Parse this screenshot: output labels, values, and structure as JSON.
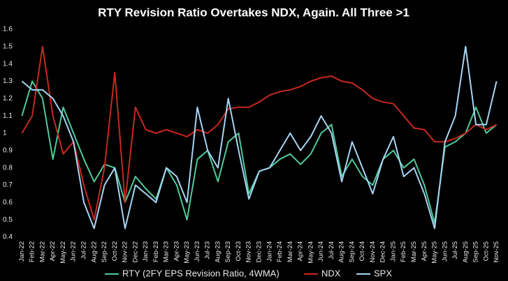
{
  "chart_data": {
    "type": "line",
    "title": "RTY Revision Ratio Overtakes NDX, Again. All Three >1",
    "categories": [
      "Jan-22",
      "Feb-22",
      "Mar-22",
      "Apr-22",
      "May-22",
      "Jun-22",
      "Jul-22",
      "Aug-22",
      "Sep-22",
      "Oct-22",
      "Nov-22",
      "Dec-22",
      "Jan-23",
      "Feb-23",
      "Mar-23",
      "Apr-23",
      "May-23",
      "Jun-23",
      "Jul-23",
      "Aug-23",
      "Sep-23",
      "Oct-23",
      "Nov-23",
      "Dec-23",
      "Jan-24",
      "Feb-24",
      "Mar-24",
      "Apr-24",
      "May-24",
      "Jun-24",
      "Jul-24",
      "Aug-24",
      "Sep-24",
      "Oct-24",
      "Nov-24",
      "Dec-24",
      "Jan-25",
      "Feb-25",
      "Mar-25",
      "Apr-25",
      "May-25",
      "Jun-25",
      "Jul-25",
      "Aug-25",
      "Sep-25",
      "Oct-25",
      "Nov-25"
    ],
    "series": [
      {
        "name": "RTY (2FY EPS Revision Ratio, 4WMA)",
        "color": "#4ecb9a",
        "values": [
          1.1,
          1.3,
          1.2,
          0.85,
          1.15,
          1.0,
          0.85,
          0.72,
          0.82,
          0.8,
          0.6,
          0.75,
          0.68,
          0.62,
          0.8,
          0.7,
          0.5,
          0.85,
          0.9,
          0.72,
          0.95,
          1.0,
          0.65,
          0.78,
          0.8,
          0.85,
          0.88,
          0.82,
          0.88,
          1.0,
          1.05,
          0.75,
          0.85,
          0.75,
          0.7,
          0.85,
          0.9,
          0.8,
          0.85,
          0.7,
          0.48,
          0.92,
          0.95,
          1.0,
          1.15,
          1.0,
          1.05
        ]
      },
      {
        "name": "NDX",
        "color": "#c8281e",
        "values": [
          1.0,
          1.1,
          1.5,
          1.1,
          0.88,
          0.95,
          0.7,
          0.5,
          0.8,
          1.35,
          0.6,
          1.15,
          1.02,
          1.0,
          1.02,
          1.0,
          0.98,
          1.02,
          1.0,
          1.05,
          1.14,
          1.15,
          1.15,
          1.18,
          1.22,
          1.24,
          1.25,
          1.27,
          1.3,
          1.32,
          1.33,
          1.3,
          1.29,
          1.25,
          1.2,
          1.18,
          1.17,
          1.1,
          1.03,
          1.02,
          0.95,
          0.95,
          0.97,
          1.0,
          1.05,
          1.02,
          1.05
        ]
      },
      {
        "name": "SPX",
        "color": "#a8d4f5",
        "values": [
          1.3,
          1.25,
          1.25,
          1.2,
          1.1,
          0.95,
          0.6,
          0.45,
          0.7,
          0.8,
          0.45,
          0.7,
          0.65,
          0.6,
          0.8,
          0.75,
          0.6,
          1.15,
          0.9,
          0.8,
          1.2,
          0.9,
          0.62,
          0.78,
          0.8,
          0.9,
          1.0,
          0.9,
          0.98,
          1.1,
          1.0,
          0.72,
          0.95,
          0.8,
          0.65,
          0.85,
          0.98,
          0.75,
          0.8,
          0.65,
          0.45,
          0.95,
          1.1,
          1.5,
          1.05,
          1.05,
          1.3
        ]
      }
    ],
    "ylim": [
      0.4,
      1.6
    ],
    "yticks": [
      0.4,
      0.5,
      0.6,
      0.7,
      0.8,
      0.9,
      1,
      1.1,
      1.2,
      1.3,
      1.4,
      1.5,
      1.6
    ]
  }
}
